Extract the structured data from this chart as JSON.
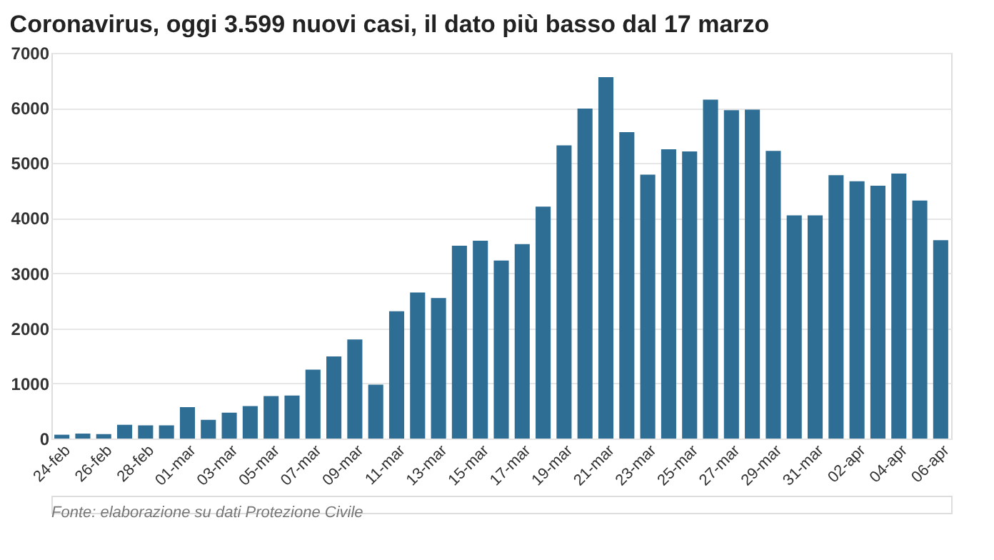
{
  "chart_data": {
    "type": "bar",
    "title": "Coronavirus, oggi 3.599 nuovi casi, il dato più basso dal 17 marzo",
    "categories": [
      "24-feb",
      null,
      "26-feb",
      null,
      "28-feb",
      null,
      "01-mar",
      null,
      "03-mar",
      null,
      "05-mar",
      null,
      "07-mar",
      null,
      "09-mar",
      null,
      "11-mar",
      null,
      "13-mar",
      null,
      "15-mar",
      null,
      "17-mar",
      null,
      "19-mar",
      null,
      "21-mar",
      null,
      "23-mar",
      null,
      "25-mar",
      null,
      "27-mar",
      null,
      "29-mar",
      null,
      "31-mar",
      null,
      "02-apr",
      null,
      "04-apr",
      null,
      "06-apr"
    ],
    "values": [
      70,
      90,
      80,
      250,
      240,
      240,
      570,
      340,
      470,
      590,
      770,
      780,
      1250,
      1490,
      1800,
      980,
      2310,
      2650,
      2550,
      3500,
      3590,
      3230,
      3530,
      4210,
      5320,
      5990,
      6560,
      5560,
      4790,
      5250,
      5210,
      6150,
      5960,
      5970,
      5220,
      4050,
      4050,
      4780,
      4670,
      4590,
      4810,
      4320,
      3600
    ],
    "color": "#2e6e94",
    "ylim": [
      0,
      7000
    ],
    "yticks": [
      0,
      1000,
      2000,
      3000,
      4000,
      5000,
      6000,
      7000
    ],
    "grid": "y",
    "annotations": [
      "Fonte: elaborazione su dati Protezione Civile"
    ]
  }
}
